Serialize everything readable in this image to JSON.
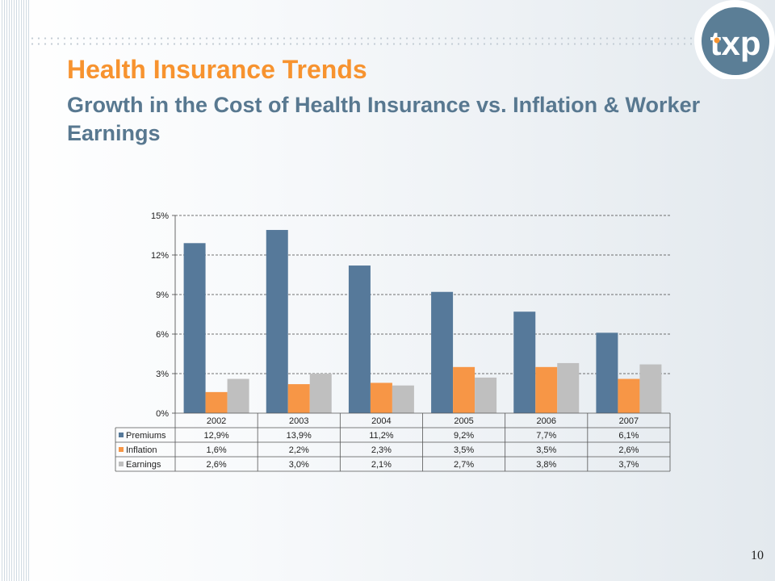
{
  "slide": {
    "title": "Health Insurance Trends",
    "subtitle": "Growth in the Cost of Health Insurance vs. Inflation & Worker Earnings",
    "page_number": "10",
    "logo_text": "txp"
  },
  "colors": {
    "title": "#f7932f",
    "subtitle": "#587890",
    "logo": "#5b7e96"
  },
  "chart_data": {
    "type": "bar",
    "title": "",
    "categories": [
      "2002",
      "2003",
      "2004",
      "2005",
      "2006",
      "2007"
    ],
    "series": [
      {
        "name": "Premiums",
        "color": "#56799a",
        "values": [
          12.9,
          13.9,
          11.2,
          9.2,
          7.7,
          6.1
        ],
        "labels": [
          "12,9%",
          "13,9%",
          "11,2%",
          "9,2%",
          "7,7%",
          "6,1%"
        ]
      },
      {
        "name": "Inflation",
        "color": "#f79646",
        "values": [
          1.6,
          2.2,
          2.3,
          3.5,
          3.5,
          2.6
        ],
        "labels": [
          "1,6%",
          "2,2%",
          "2,3%",
          "3,5%",
          "3,5%",
          "2,6%"
        ]
      },
      {
        "name": "Earnings",
        "color": "#bfbfbf",
        "values": [
          2.6,
          3.0,
          2.1,
          2.7,
          3.8,
          3.7
        ],
        "labels": [
          "2,6%",
          "3,0%",
          "2,1%",
          "2,7%",
          "3,8%",
          "3,7%"
        ]
      }
    ],
    "ylim": [
      0,
      15
    ],
    "yticks": [
      0,
      3,
      6,
      9,
      12,
      15
    ],
    "ytick_labels": [
      "0%",
      "3%",
      "6%",
      "9%",
      "12%",
      "15%"
    ],
    "grid": true,
    "legend": "data-table",
    "xlabel": "",
    "ylabel": ""
  }
}
